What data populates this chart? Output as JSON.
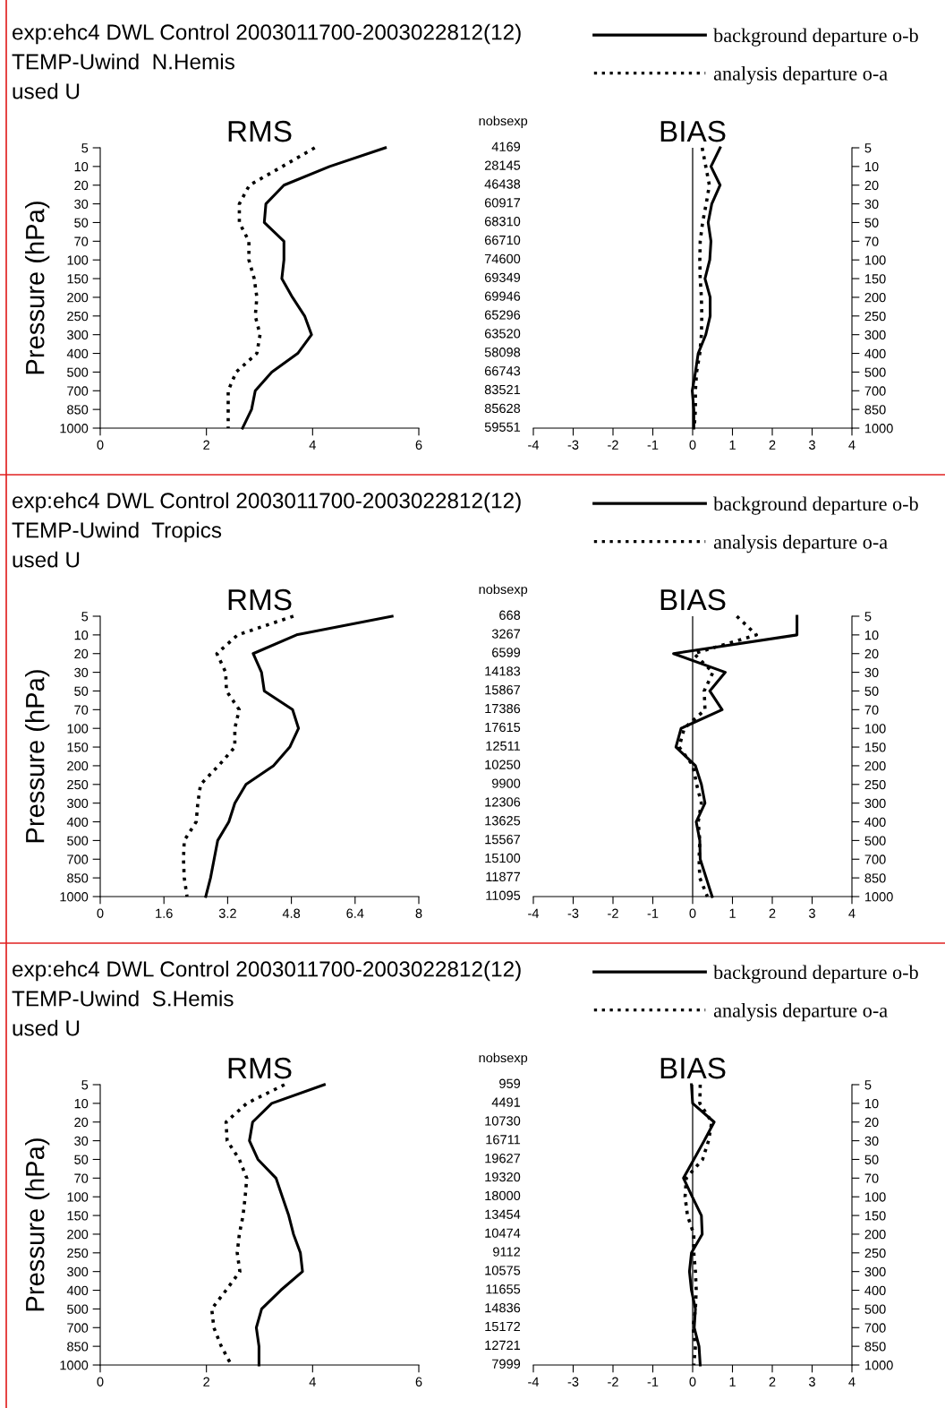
{
  "chart_data": [
    {
      "type": "line",
      "orientation": "horizontal",
      "title": "RMS",
      "ylabel": "Pressure (hPa)",
      "annotations": [
        "exp:ehc4 DWL Control 2003011700-2003022812(12)",
        "TEMP-Uwind  N.Hemis",
        "used U"
      ],
      "categories": [
        "5",
        "10",
        "20",
        "30",
        "50",
        "70",
        "100",
        "150",
        "200",
        "250",
        "300",
        "400",
        "500",
        "700",
        "850",
        "1000"
      ],
      "xlim": [
        0,
        6
      ],
      "xticks": [
        0,
        2,
        4,
        6
      ],
      "series": [
        {
          "color": "#000000",
          "line_style": "solid",
          "values": [
            5.37,
            4.32,
            3.46,
            3.12,
            3.09,
            3.46,
            3.46,
            3.42,
            3.62,
            3.85,
            3.98,
            3.72,
            3.23,
            2.92,
            2.85,
            2.68
          ]
        },
        {
          "color": "#000000",
          "line_style": "dotted",
          "values": [
            4.04,
            3.43,
            2.81,
            2.62,
            2.62,
            2.8,
            2.8,
            2.9,
            2.95,
            2.92,
            3.01,
            2.95,
            2.56,
            2.41,
            2.41,
            2.41
          ]
        }
      ]
    },
    {
      "type": "line",
      "orientation": "horizontal",
      "title": "BIAS",
      "annotations": [
        "nobsexp",
        "4169",
        "28145",
        "46438",
        "60917",
        "68310",
        "66710",
        "74600",
        "69349",
        "69946",
        "65296",
        "63520",
        "58098",
        "66743",
        "83521",
        "85628",
        "59551"
      ],
      "categories": [
        "5",
        "10",
        "20",
        "30",
        "50",
        "70",
        "100",
        "150",
        "200",
        "250",
        "300",
        "400",
        "500",
        "700",
        "850",
        "1000"
      ],
      "xlim": [
        -4,
        4
      ],
      "xticks": [
        -4,
        -3,
        -2,
        -1,
        0,
        1,
        2,
        3,
        4
      ],
      "legend": "top right",
      "ref_lines": [
        {
          "axis": "x",
          "value": 0,
          "color": "#000000"
        }
      ],
      "series": [
        {
          "name": "background departure o-b",
          "color": "#000000",
          "line_style": "solid",
          "values": [
            0.69,
            0.46,
            0.69,
            0.48,
            0.39,
            0.46,
            0.43,
            0.31,
            0.44,
            0.44,
            0.33,
            0.14,
            0.07,
            -0.01,
            0.03,
            0.03
          ]
        },
        {
          "name": "analysis departure o-a",
          "color": "#000000",
          "line_style": "dotted",
          "values": [
            0.24,
            0.33,
            0.42,
            0.34,
            0.25,
            0.19,
            0.18,
            0.19,
            0.22,
            0.23,
            0.22,
            0.18,
            0.1,
            0.07,
            0.07,
            0.04
          ]
        }
      ]
    },
    {
      "type": "line",
      "orientation": "horizontal",
      "title": "RMS",
      "ylabel": "Pressure (hPa)",
      "annotations": [
        "exp:ehc4 DWL Control 2003011700-2003022812(12)",
        "TEMP-Uwind  Tropics",
        "used U"
      ],
      "categories": [
        "5",
        "10",
        "20",
        "30",
        "50",
        "70",
        "100",
        "150",
        "200",
        "250",
        "300",
        "400",
        "500",
        "700",
        "850",
        "1000"
      ],
      "xlim": [
        0,
        8
      ],
      "xticks": [
        0,
        1.6,
        3.2,
        4.8,
        6.4,
        8
      ],
      "series": [
        {
          "color": "#000000",
          "line_style": "solid",
          "values": [
            7.33,
            4.93,
            3.84,
            4.05,
            4.12,
            4.83,
            4.98,
            4.76,
            4.35,
            3.66,
            3.38,
            3.23,
            2.95,
            2.86,
            2.77,
            2.65
          ]
        },
        {
          "color": "#000000",
          "line_style": "dotted",
          "values": [
            4.85,
            3.45,
            2.93,
            3.15,
            3.17,
            3.49,
            3.38,
            3.38,
            2.97,
            2.52,
            2.45,
            2.41,
            2.11,
            2.09,
            2.11,
            2.18
          ]
        }
      ]
    },
    {
      "type": "line",
      "orientation": "horizontal",
      "title": "BIAS",
      "annotations": [
        "nobsexp",
        "668",
        "3267",
        "6599",
        "14183",
        "15867",
        "17386",
        "17615",
        "12511",
        "10250",
        "9900",
        "12306",
        "13625",
        "15567",
        "15100",
        "11877",
        "11095"
      ],
      "categories": [
        "5",
        "10",
        "20",
        "30",
        "50",
        "70",
        "100",
        "150",
        "200",
        "250",
        "300",
        "400",
        "500",
        "700",
        "850",
        "1000"
      ],
      "xlim": [
        -4,
        4
      ],
      "xticks": [
        -4,
        -3,
        -2,
        -1,
        0,
        1,
        2,
        3,
        4
      ],
      "legend": "top right",
      "ref_lines": [
        {
          "axis": "x",
          "value": 0,
          "color": "#000000"
        }
      ],
      "series": [
        {
          "name": "background departure o-b",
          "color": "#000000",
          "line_style": "solid",
          "values": [
            2.62,
            2.62,
            -0.48,
            0.82,
            0.43,
            0.74,
            -0.29,
            -0.42,
            0.07,
            0.22,
            0.31,
            0.09,
            0.18,
            0.19,
            0.34,
            0.49
          ]
        },
        {
          "name": "analysis departure o-a",
          "color": "#000000",
          "line_style": "dotted",
          "values": [
            1.11,
            1.6,
            0.03,
            0.51,
            0.29,
            0.31,
            -0.21,
            -0.34,
            0.01,
            0.1,
            0.22,
            0.14,
            0.18,
            0.16,
            0.18,
            0.37
          ]
        }
      ]
    },
    {
      "type": "line",
      "orientation": "horizontal",
      "title": "RMS",
      "ylabel": "Pressure (hPa)",
      "annotations": [
        "exp:ehc4 DWL Control 2003011700-2003022812(12)",
        "TEMP-Uwind  S.Hemis",
        "used U"
      ],
      "categories": [
        "5",
        "10",
        "20",
        "30",
        "50",
        "70",
        "100",
        "150",
        "200",
        "250",
        "300",
        "400",
        "500",
        "700",
        "850",
        "1000"
      ],
      "xlim": [
        0,
        6
      ],
      "xticks": [
        0,
        2,
        4,
        6
      ],
      "series": [
        {
          "color": "#000000",
          "line_style": "solid",
          "values": [
            4.22,
            3.23,
            2.87,
            2.81,
            2.97,
            3.31,
            3.43,
            3.55,
            3.64,
            3.77,
            3.81,
            3.4,
            3.04,
            2.94,
            2.99,
            2.99
          ]
        },
        {
          "color": "#000000",
          "line_style": "dotted",
          "values": [
            3.47,
            2.76,
            2.37,
            2.39,
            2.62,
            2.76,
            2.73,
            2.69,
            2.62,
            2.58,
            2.63,
            2.37,
            2.1,
            2.14,
            2.28,
            2.47
          ]
        }
      ]
    },
    {
      "type": "line",
      "orientation": "horizontal",
      "title": "BIAS",
      "annotations": [
        "nobsexp",
        "959",
        "4491",
        "10730",
        "16711",
        "19627",
        "19320",
        "18000",
        "13454",
        "10474",
        "9112",
        "10575",
        "11655",
        "14836",
        "15172",
        "12721",
        "7999"
      ],
      "categories": [
        "5",
        "10",
        "20",
        "30",
        "50",
        "70",
        "100",
        "150",
        "200",
        "250",
        "300",
        "400",
        "500",
        "700",
        "850",
        "1000"
      ],
      "xlim": [
        -4,
        4
      ],
      "xticks": [
        -4,
        -3,
        -2,
        -1,
        0,
        1,
        2,
        3,
        4
      ],
      "legend": "top right",
      "ref_lines": [
        {
          "axis": "x",
          "value": 0,
          "color": "#000000"
        }
      ],
      "series": [
        {
          "name": "background departure o-b",
          "color": "#000000",
          "line_style": "solid",
          "values": [
            -0.03,
            0.0,
            0.54,
            0.29,
            0.03,
            -0.23,
            -0.01,
            0.22,
            0.24,
            -0.03,
            -0.08,
            -0.03,
            0.07,
            0.04,
            0.16,
            0.19
          ]
        },
        {
          "name": "analysis departure o-a",
          "color": "#000000",
          "line_style": "dotted",
          "values": [
            0.19,
            0.18,
            0.48,
            0.4,
            0.25,
            -0.16,
            -0.19,
            -0.13,
            0.03,
            0.03,
            0.07,
            0.09,
            0.07,
            0.01,
            0.07,
            0.03
          ]
        }
      ]
    }
  ]
}
